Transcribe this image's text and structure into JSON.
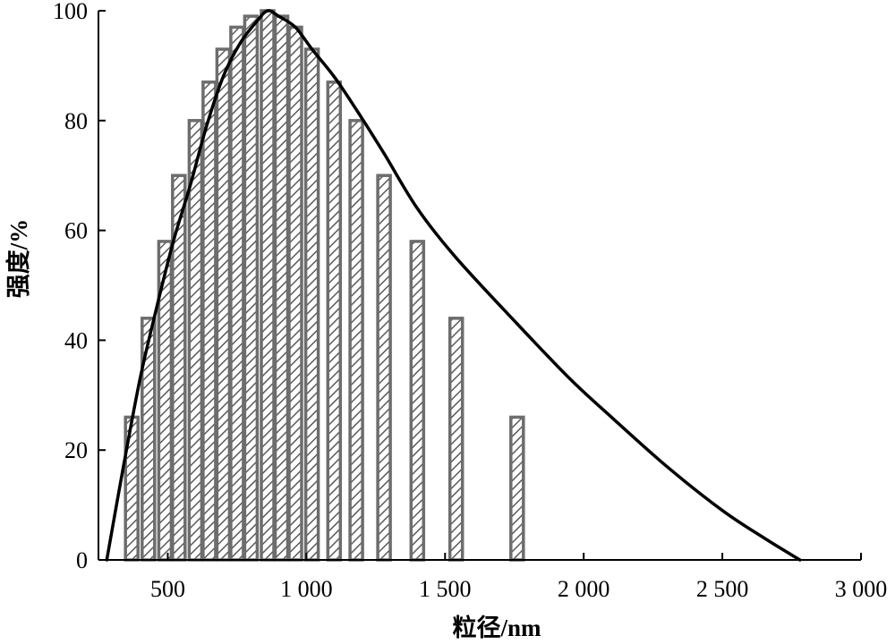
{
  "chart_data": {
    "type": "bar",
    "title": "",
    "xlabel": "粒径/nm",
    "ylabel": "强度/%",
    "xlim": [
      250,
      3000
    ],
    "ylim": [
      0,
      100
    ],
    "x_ticks": [
      500,
      1000,
      1500,
      2000,
      2500,
      3000
    ],
    "x_tick_labels": [
      "500",
      "1 000",
      "1 500",
      "2 000",
      "2 500",
      "3 000"
    ],
    "y_ticks": [
      0,
      20,
      40,
      60,
      80,
      100
    ],
    "y_tick_labels": [
      "0",
      "20",
      "40",
      "60",
      "80",
      "100"
    ],
    "grid": false,
    "series": [
      {
        "kind": "bar",
        "x": [
          370,
          430,
          490,
          540,
          600,
          650,
          700,
          750,
          800,
          860,
          910,
          960,
          1020,
          1100,
          1180,
          1280,
          1400,
          1540,
          1760,
          2130
        ],
        "values": [
          26,
          44,
          58,
          70,
          80,
          87,
          93,
          97,
          99,
          100,
          99,
          97,
          93,
          87,
          80,
          70,
          58,
          44,
          26,
          0
        ]
      },
      {
        "kind": "line",
        "x": [
          280,
          340,
          400,
          460,
          520,
          580,
          640,
          700,
          760,
          820,
          860,
          900,
          960,
          1020,
          1100,
          1180,
          1280,
          1400,
          1540,
          1760,
          1950,
          2100,
          2300,
          2500,
          2650,
          2780
        ],
        "values": [
          0,
          17,
          33,
          46,
          58,
          68,
          79,
          88,
          94,
          98,
          100,
          99,
          97,
          93,
          88,
          82,
          74,
          64,
          55,
          43,
          33,
          26,
          17,
          9,
          4,
          0
        ]
      }
    ]
  },
  "colors": {
    "bar_edge": "#6d6d6d",
    "hatch": "#5a5a5a",
    "curve": "#000000",
    "axis": "#000000"
  }
}
